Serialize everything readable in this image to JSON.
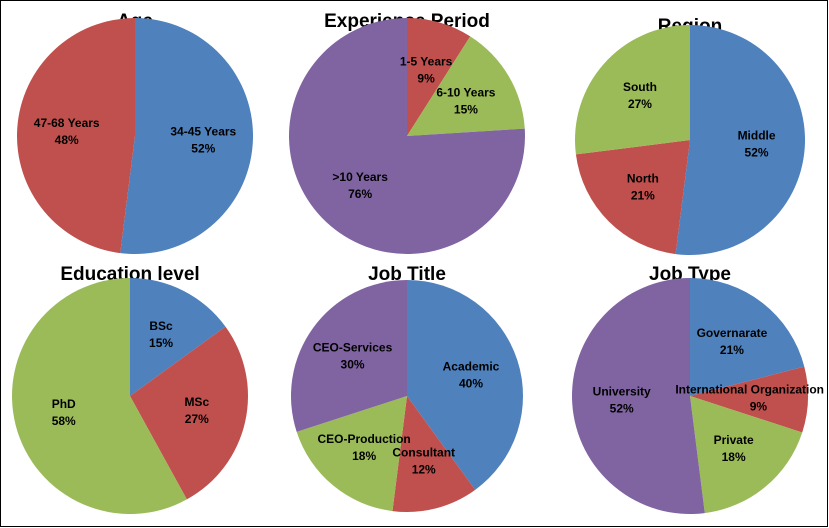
{
  "chart_data": [
    {
      "type": "pie",
      "title": "Age",
      "categories": [
        "34-45 Years",
        "47-68 Years"
      ],
      "values": [
        52,
        48
      ],
      "value_labels": [
        "52%",
        "48%"
      ],
      "colors": [
        "#4f81bd",
        "#c0504d"
      ]
    },
    {
      "type": "pie",
      "title": "Experience Period",
      "categories": [
        "1-5 Years",
        "6-10 Years",
        ">10 Years"
      ],
      "values": [
        9,
        15,
        76
      ],
      "value_labels": [
        "9%",
        "15%",
        "76%"
      ],
      "colors": [
        "#c0504d",
        "#9bbb59",
        "#8064a2"
      ]
    },
    {
      "type": "pie",
      "title": "Region",
      "categories": [
        "Middle",
        "North",
        "South"
      ],
      "values": [
        52,
        21,
        27
      ],
      "value_labels": [
        "52%",
        "21%",
        "27%"
      ],
      "colors": [
        "#4f81bd",
        "#c0504d",
        "#9bbb59"
      ]
    },
    {
      "type": "pie",
      "title": "Education level",
      "categories": [
        "BSc",
        "MSc",
        "PhD"
      ],
      "values": [
        15,
        27,
        58
      ],
      "value_labels": [
        "15%",
        "27%",
        "58%"
      ],
      "colors": [
        "#4f81bd",
        "#c0504d",
        "#9bbb59"
      ]
    },
    {
      "type": "pie",
      "title": "Job Title",
      "categories": [
        "Academic",
        "Consultant",
        "CEO-Production",
        "CEO-Services"
      ],
      "values": [
        40,
        12,
        18,
        30
      ],
      "value_labels": [
        "40%",
        "12%",
        "18%",
        "30%"
      ],
      "colors": [
        "#4f81bd",
        "#c0504d",
        "#9bbb59",
        "#8064a2"
      ]
    },
    {
      "type": "pie",
      "title": "Job Type",
      "categories": [
        "Governarate",
        "International Organization",
        "Private",
        "University"
      ],
      "values": [
        21,
        9,
        18,
        52
      ],
      "value_labels": [
        "21%",
        "9%",
        "18%",
        "52%"
      ],
      "colors": [
        "#4f81bd",
        "#c0504d",
        "#9bbb59",
        "#8064a2"
      ]
    }
  ]
}
